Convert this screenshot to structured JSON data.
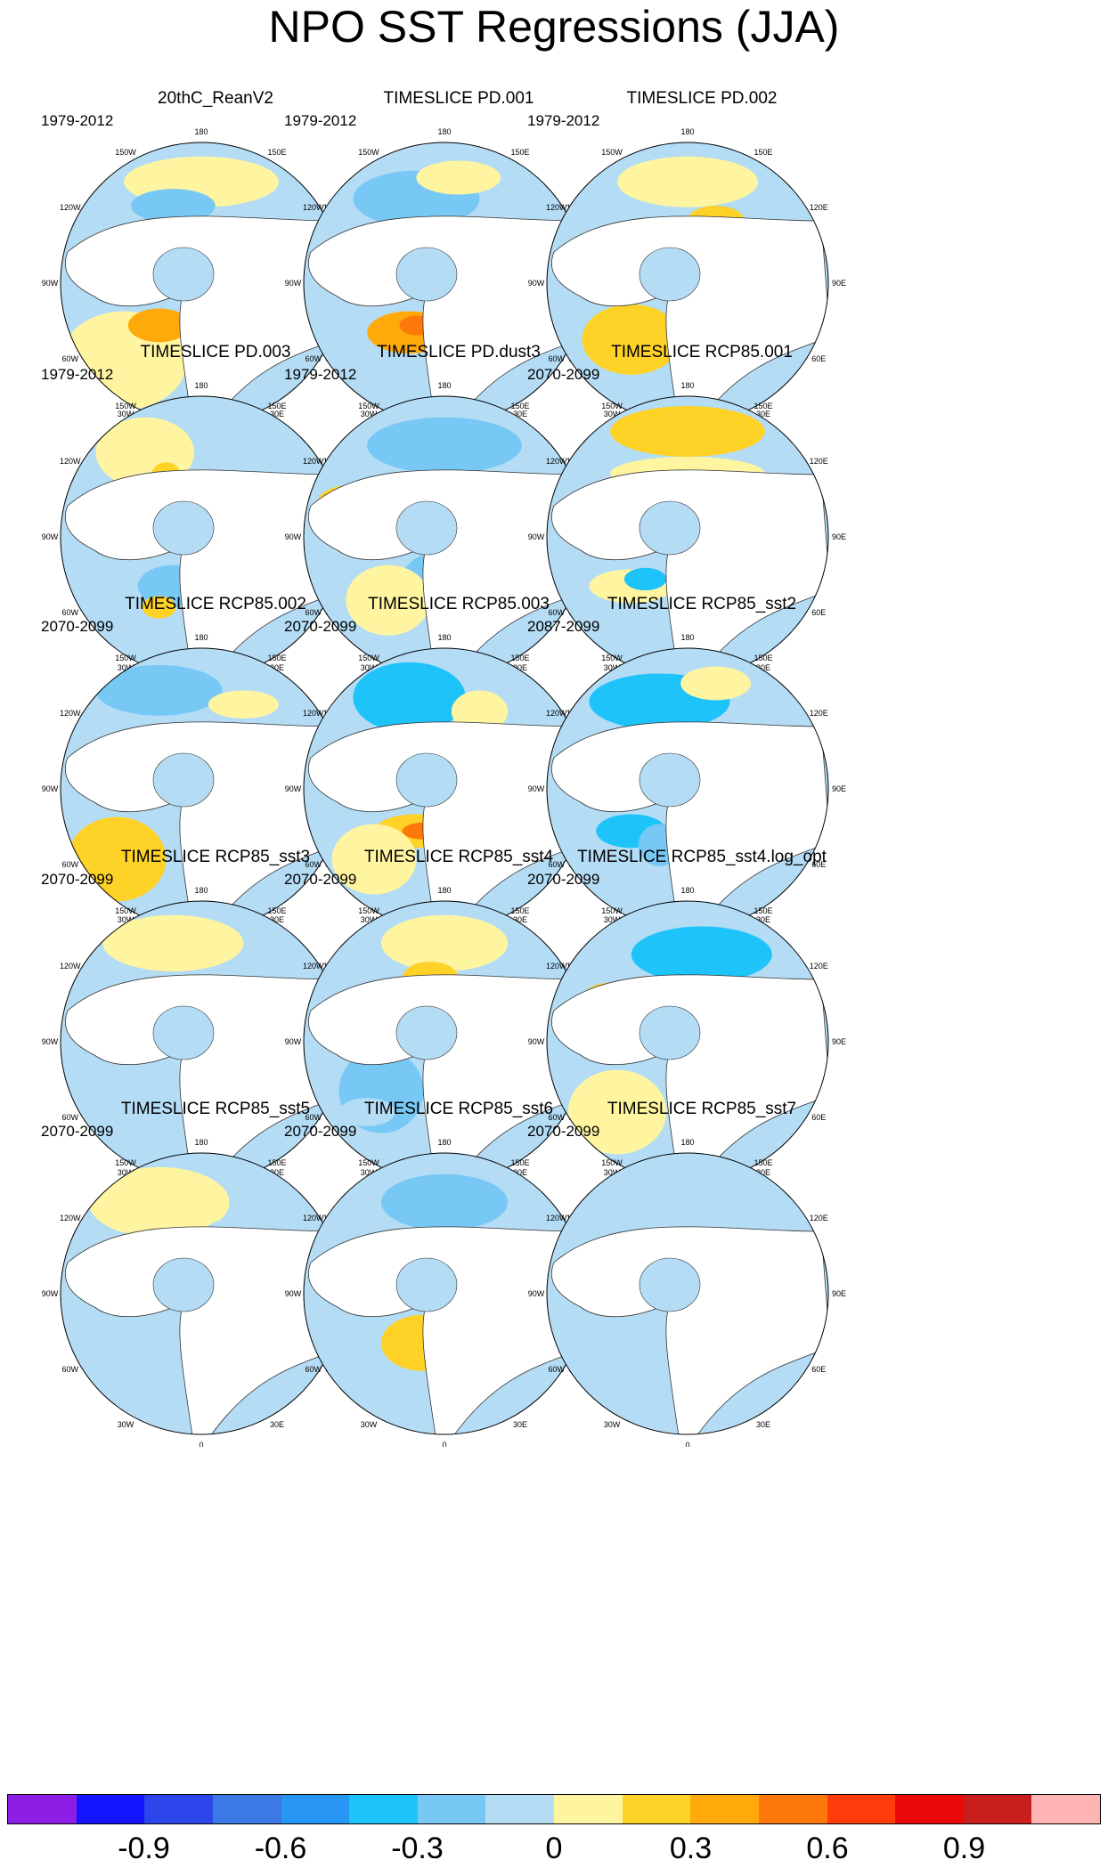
{
  "title": "NPO SST Regressions (JJA)",
  "chart_data": {
    "type": "heatmap",
    "projection": "north polar stereographic",
    "variable": "SST regression on NPO",
    "season": "JJA",
    "longitude_labels": [
      "180",
      "150E",
      "120E",
      "90E",
      "60E",
      "30E",
      "0",
      "30W",
      "60W",
      "90W",
      "120W",
      "150W"
    ],
    "colorbar": {
      "colors": [
        "#8c1ee6",
        "#1414ff",
        "#2d46eb",
        "#3c78e6",
        "#2896f5",
        "#1ec3fa",
        "#78c8f5",
        "#b4dcf5",
        "#fff5a0",
        "#ffd228",
        "#ffaa0a",
        "#ff780a",
        "#ff3c0a",
        "#eb0a0a",
        "#c81e1e",
        "#ffb4b4"
      ],
      "tick_labels": [
        "-0.9",
        "-0.6",
        "-0.3",
        "0",
        "0.3",
        "0.6",
        "0.9"
      ]
    },
    "panels": [
      {
        "title": "20thC_ReanV2",
        "years": "1979-2012"
      },
      {
        "title": "TIMESLICE PD.001",
        "years": "1979-2012"
      },
      {
        "title": "TIMESLICE PD.002",
        "years": "1979-2012"
      },
      {
        "title": "TIMESLICE PD.003",
        "years": "1979-2012"
      },
      {
        "title": "TIMESLICE PD.dust3",
        "years": "1979-2012"
      },
      {
        "title": "TIMESLICE RCP85.001",
        "years": "2070-2099"
      },
      {
        "title": "TIMESLICE RCP85.002",
        "years": "2070-2099"
      },
      {
        "title": "TIMESLICE RCP85.003",
        "years": "2070-2099"
      },
      {
        "title": "TIMESLICE RCP85_sst2",
        "years": "2087-2099"
      },
      {
        "title": "TIMESLICE RCP85_sst3",
        "years": "2070-2099"
      },
      {
        "title": "TIMESLICE RCP85_sst4",
        "years": "2070-2099"
      },
      {
        "title": "TIMESLICE RCP85_sst4.log_opt",
        "years": "2070-2099"
      },
      {
        "title": "TIMESLICE RCP85_sst5",
        "years": "2070-2099"
      },
      {
        "title": "TIMESLICE RCP85_sst6",
        "years": "2070-2099"
      },
      {
        "title": "TIMESLICE RCP85_sst7",
        "years": "2070-2099"
      }
    ]
  }
}
